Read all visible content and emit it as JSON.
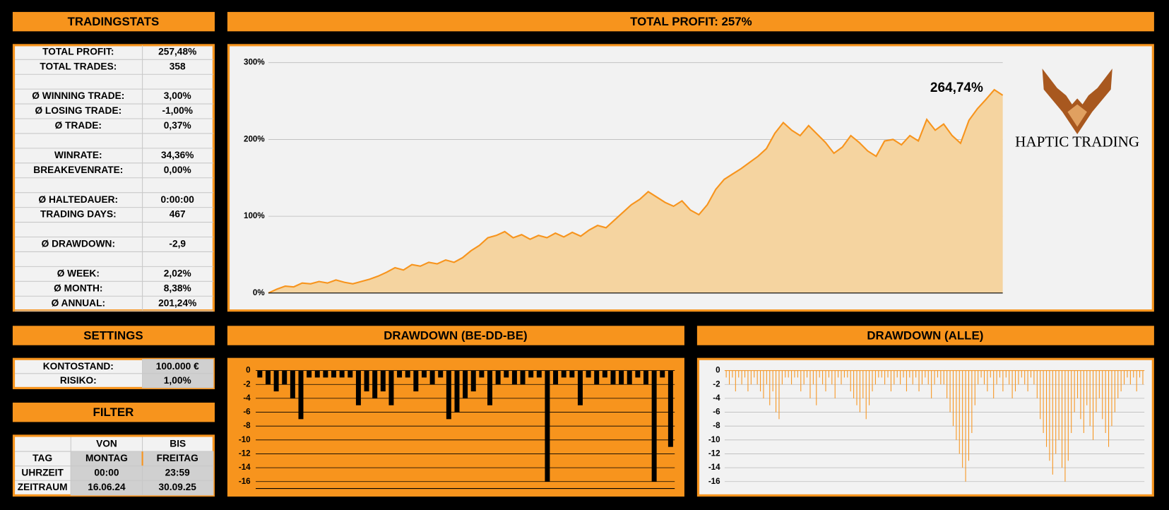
{
  "headers": {
    "tradingstats": "TRADINGSTATS",
    "settings": "SETTINGS",
    "filter": "FILTER"
  },
  "stats": [
    {
      "label": "TOTAL PROFIT:",
      "value": "257,48%"
    },
    {
      "label": "TOTAL TRADES:",
      "value": "358"
    },
    {
      "label": "Ø WINNING TRADE:",
      "value": "3,00%"
    },
    {
      "label": "Ø LOSING TRADE:",
      "value": "-1,00%"
    },
    {
      "label": "Ø TRADE:",
      "value": "0,37%"
    },
    {
      "label": "WINRATE:",
      "value": "34,36%"
    },
    {
      "label": "BREAKEVENRATE:",
      "value": "0,00%"
    },
    {
      "label": "Ø HALTEDAUER:",
      "value": "0:00:00"
    },
    {
      "label": "TRADING DAYS:",
      "value": "467"
    },
    {
      "label": "Ø DRAWDOWN:",
      "value": "-2,9"
    },
    {
      "label": "Ø WEEK:",
      "value": "2,02%"
    },
    {
      "label": "Ø MONTH:",
      "value": "8,38%"
    },
    {
      "label": "Ø ANNUAL:",
      "value": "201,24%"
    }
  ],
  "settings": [
    {
      "label": "KONTOSTAND:",
      "value": "100.000 €"
    },
    {
      "label": "RISIKO:",
      "value": "1,00%"
    }
  ],
  "filter": {
    "columns": [
      "VON",
      "BIS"
    ],
    "rows": [
      {
        "label": "TAG",
        "from": "MONTAG",
        "to": "FREITAG"
      },
      {
        "label": "UHRZEIT",
        "from": "00:00",
        "to": "23:59"
      },
      {
        "label": "ZEITRAUM",
        "from": "16.06.24",
        "to": "30.09.25"
      }
    ]
  },
  "logo": "HAPTIC TRADING",
  "chart_data": [
    {
      "type": "area",
      "title": "TOTAL PROFIT: 257%",
      "color": "#f7941d",
      "fill": "#f5d4a0",
      "ylim": [
        0,
        300
      ],
      "yticks": [
        {
          "value": 0,
          "label": "0%"
        },
        {
          "value": 100,
          "label": "100%"
        },
        {
          "value": 200,
          "label": "200%"
        },
        {
          "value": 300,
          "label": "300%"
        }
      ],
      "grid": true,
      "annotation": {
        "value": 264.74,
        "label": "264,74%"
      },
      "values": [
        0,
        5,
        9,
        8,
        13,
        12,
        15,
        13,
        17,
        14,
        12,
        15,
        18,
        22,
        27,
        33,
        30,
        37,
        35,
        40,
        38,
        43,
        40,
        46,
        55,
        62,
        72,
        75,
        80,
        72,
        76,
        70,
        75,
        72,
        78,
        73,
        79,
        74,
        82,
        88,
        85,
        95,
        105,
        115,
        122,
        132,
        125,
        118,
        113,
        120,
        108,
        102,
        115,
        135,
        148,
        155,
        162,
        170,
        178,
        188,
        208,
        222,
        212,
        205,
        218,
        207,
        196,
        182,
        190,
        205,
        196,
        185,
        178,
        198,
        200,
        193,
        205,
        198,
        226,
        212,
        220,
        205,
        195,
        225,
        240,
        252,
        264.74,
        257.48
      ]
    },
    {
      "type": "bar",
      "title": "DRAWDOWN (BE-DD-BE)",
      "color": "#000000",
      "ylim": [
        -17,
        0
      ],
      "yticks": [
        0,
        -2,
        -4,
        -6,
        -8,
        -10,
        -12,
        -14,
        -16
      ],
      "grid": true,
      "values": [
        -1,
        -2,
        -3,
        -2,
        -4,
        -7,
        -1,
        -1,
        -1,
        -1,
        -1,
        -1,
        -5,
        -3,
        -4,
        -3,
        -5,
        -1,
        -1,
        -3,
        -1,
        -2,
        -1,
        -7,
        -6,
        -4,
        -3,
        -1,
        -5,
        -2,
        -1,
        -2,
        -2,
        -1,
        -1,
        -16,
        -2,
        -1,
        -1,
        -5,
        -1,
        -2,
        -1,
        -2,
        -2,
        -2,
        -1,
        -2,
        -16,
        -1,
        -11
      ]
    },
    {
      "type": "spike",
      "title": "DRAWDOWN (ALLE)",
      "color": "#f7941d",
      "ylim": [
        -17,
        0
      ],
      "yticks": [
        0,
        -2,
        -4,
        -6,
        -8,
        -10,
        -12,
        -14,
        -16
      ],
      "grid": true,
      "values": [
        -1,
        -2,
        -1,
        -3,
        -1,
        -2,
        -1,
        -3,
        -2,
        -1,
        -2,
        -3,
        -4,
        -2,
        -5,
        -3,
        -6,
        -7,
        -2,
        -1,
        -1,
        -2,
        -1,
        -1,
        -3,
        -2,
        -1,
        -4,
        -2,
        -5,
        -1,
        -2,
        -3,
        -1,
        -2,
        -4,
        -1,
        -2,
        -1,
        -1,
        -3,
        -4,
        -5,
        -6,
        -4,
        -7,
        -5,
        -3,
        -2,
        -1,
        -1,
        -2,
        -1,
        -3,
        -2,
        -1,
        -2,
        -1,
        -3,
        -1,
        -2,
        -1,
        -3,
        -2,
        -1,
        -2,
        -4,
        -2,
        -1,
        -2,
        -2,
        -4,
        -6,
        -8,
        -10,
        -12,
        -14,
        -16,
        -13,
        -9,
        -5,
        -2,
        -1,
        -2,
        -3,
        -1,
        -4,
        -2,
        -1,
        -3,
        -1,
        -2,
        -4,
        -3,
        -2,
        -1,
        -2,
        -3,
        -1,
        -2,
        -4,
        -7,
        -9,
        -11,
        -13,
        -15,
        -12,
        -10,
        -14,
        -16,
        -13,
        -9,
        -6,
        -4,
        -7,
        -9,
        -5,
        -8,
        -10,
        -6,
        -4,
        -7,
        -9,
        -11,
        -8,
        -6,
        -4,
        -3,
        -2,
        -1,
        -2,
        -1,
        -3,
        -1,
        -2
      ]
    }
  ]
}
